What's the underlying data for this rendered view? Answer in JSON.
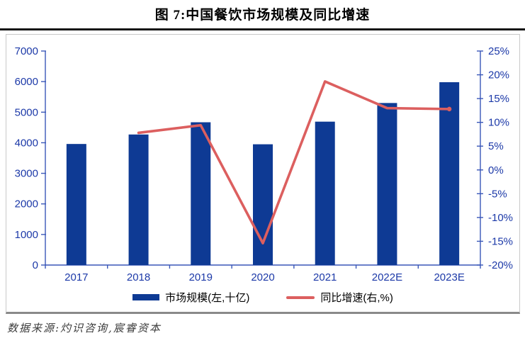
{
  "header": {
    "title": "图 7:中国餐饮市场规模及同比增速"
  },
  "colors": {
    "bar_blue": "#0e3a94",
    "line_red": "#dc5f5f",
    "axis_line_blue": "#3a57b8",
    "axis_label_blue": "#1c39a8",
    "box_border": "#c9c9c9",
    "title_rule": "#151515"
  },
  "chart_data": {
    "type": "bar+line",
    "title": "图 7:中国餐饮市场规模及同比增速",
    "categories": [
      "2017",
      "2018",
      "2019",
      "2020",
      "2021",
      "2022E",
      "2023E"
    ],
    "series": [
      {
        "name": "市场规模(左,十亿)",
        "type": "bar",
        "axis": "left",
        "values": [
          3960,
          4270,
          4670,
          3950,
          4690,
          5300,
          5980
        ]
      },
      {
        "name": "同比增速(右,%)",
        "type": "line",
        "axis": "right",
        "values": [
          null,
          7.8,
          9.4,
          -15.4,
          18.6,
          13.0,
          12.8
        ]
      }
    ],
    "left_axis": {
      "min": 0,
      "max": 7000,
      "ticks": [
        0,
        1000,
        2000,
        3000,
        4000,
        5000,
        6000,
        7000
      ]
    },
    "right_axis": {
      "min": -20,
      "max": 25,
      "step": 5,
      "tick_labels": [
        "-20%",
        "-15%",
        "-10%",
        "-5%",
        "0%",
        "5%",
        "10%",
        "15%",
        "20%",
        "25%"
      ]
    },
    "grid": false,
    "legend_position": "bottom"
  },
  "legend": {
    "items": [
      {
        "label": "市场规模(左,十亿)",
        "swatch": "bar"
      },
      {
        "label": "同比增速(右,%)",
        "swatch": "line"
      }
    ]
  },
  "footer": {
    "source": "数据来源:灼识咨询,宸睿资本"
  }
}
